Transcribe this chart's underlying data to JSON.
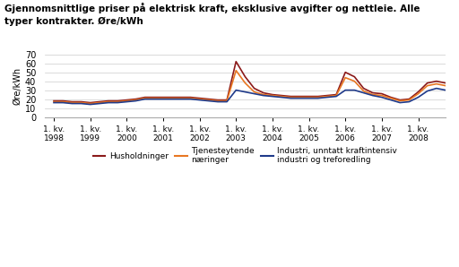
{
  "title": "Gjennomsnittlige priser på elektrisk kraft, eksklusive avgifter og nettleie. Alle\ntyper kontrakter. Øre/kWh",
  "ylabel": "Øre/kWh",
  "ylim": [
    0,
    70
  ],
  "yticks": [
    0,
    10,
    20,
    30,
    40,
    50,
    60,
    70
  ],
  "xtick_labels": [
    "1. kv.\n1998",
    "1. kv.\n1999",
    "1. kv.\n2000",
    "1. kv.\n2001",
    "1. kv.\n2002",
    "1. kv.\n2003",
    "1. kv.\n2004",
    "1. kv.\n2005",
    "1. kv.\n2006",
    "1. kv.\n2007",
    "1. kv.\n2008"
  ],
  "colors": {
    "husholdninger": "#8B1A1A",
    "tjeneste": "#E87722",
    "industri": "#1F3A8A"
  },
  "legend_labels": [
    "Husholdninger",
    "Tjenesteytende\nnæringer",
    "Industri, unntatt kraftintensiv\nindustri og treforedling"
  ],
  "husholdninger": [
    18,
    18,
    17,
    17,
    16,
    17,
    18,
    18,
    19,
    20,
    22,
    22,
    22,
    22,
    22,
    22,
    21,
    20,
    19,
    19,
    62,
    45,
    32,
    27,
    25,
    24,
    23,
    23,
    23,
    23,
    24,
    25,
    50,
    45,
    32,
    27,
    26,
    22,
    19,
    20,
    28,
    38,
    40,
    38
  ],
  "tjeneste": [
    17,
    17,
    16,
    16,
    15,
    16,
    17,
    17,
    18,
    19,
    21,
    21,
    21,
    21,
    21,
    21,
    20,
    19,
    18,
    18,
    52,
    38,
    28,
    25,
    24,
    23,
    22,
    22,
    22,
    22,
    23,
    24,
    44,
    40,
    29,
    25,
    24,
    21,
    18,
    19,
    26,
    35,
    37,
    35
  ],
  "industri": [
    16,
    16,
    15,
    15,
    14,
    15,
    16,
    16,
    17,
    18,
    20,
    20,
    20,
    20,
    20,
    20,
    19,
    18,
    17,
    17,
    30,
    28,
    26,
    24,
    23,
    22,
    21,
    21,
    21,
    21,
    22,
    23,
    30,
    30,
    27,
    24,
    22,
    19,
    16,
    17,
    22,
    29,
    32,
    30
  ]
}
